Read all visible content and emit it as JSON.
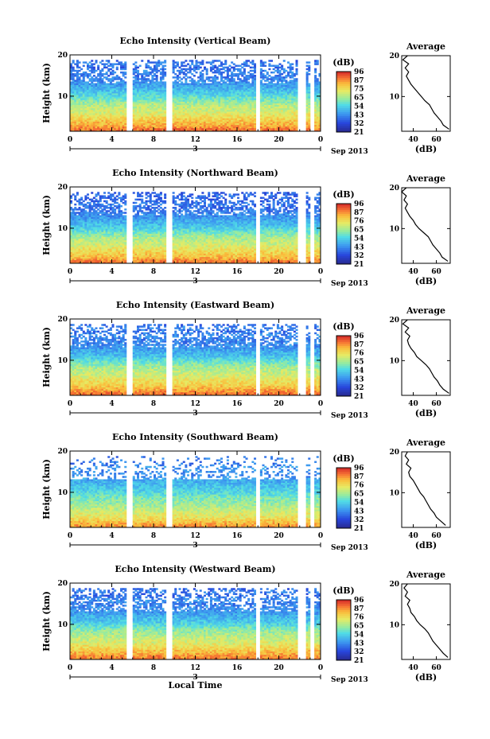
{
  "chart_data": [
    {
      "type": "heatmap",
      "title": "Echo Intensity (Vertical Beam)",
      "ylabel": "Height (km)",
      "xticks": [
        "0",
        "4",
        "8",
        "12",
        "16",
        "20",
        "0"
      ],
      "xlim": [
        0,
        24
      ],
      "yticks": [
        "10",
        "20"
      ],
      "ylim": [
        1.5,
        20
      ],
      "date_label": "3",
      "date_suffix": "Sep 2013",
      "colorbar": {
        "unit": "(dB)",
        "ticks": [
          "96",
          "87",
          "75",
          "65",
          "54",
          "43",
          "32",
          "21"
        ]
      },
      "data_gaps": [
        [
          1.8,
          1.9
        ],
        [
          5.4,
          6.0
        ],
        [
          9.3,
          9.8
        ],
        [
          17.8,
          18.1
        ],
        [
          21.8,
          22.5
        ],
        [
          23.0,
          23.3
        ]
      ],
      "profile": {
        "title": "Average",
        "xlabel": "(dB)",
        "xticks": [
          "40",
          "60"
        ],
        "xlim": [
          30,
          72
        ],
        "yticks": [
          "10",
          "20"
        ],
        "ylim": [
          1.5,
          20
        ],
        "heights": [
          2,
          3,
          4,
          5,
          6,
          7,
          8,
          9,
          10,
          11,
          12,
          13,
          14,
          15,
          16,
          17,
          18,
          19,
          20
        ],
        "values": [
          71,
          66,
          64,
          61,
          58,
          56,
          54,
          50,
          47,
          44,
          41,
          38,
          36,
          34,
          36,
          33,
          36,
          31,
          35
        ]
      }
    },
    {
      "type": "heatmap",
      "title": "Echo Intensity (Northward Beam)",
      "ylabel": "Height (km)",
      "xticks": [
        "0",
        "4",
        "8",
        "12",
        "16",
        "20",
        "0"
      ],
      "xlim": [
        0,
        24
      ],
      "yticks": [
        "10",
        "20"
      ],
      "ylim": [
        1.5,
        20
      ],
      "date_label": "3",
      "date_suffix": "Sep 2013",
      "colorbar": {
        "unit": "(dB)",
        "ticks": [
          "96",
          "87",
          "76",
          "65",
          "54",
          "43",
          "32",
          "21"
        ]
      },
      "data_gaps": [
        [
          1.8,
          1.9
        ],
        [
          5.4,
          6.0
        ],
        [
          9.3,
          9.8
        ],
        [
          17.8,
          18.1
        ],
        [
          21.8,
          22.5
        ],
        [
          23.0,
          23.3
        ]
      ],
      "profile": {
        "title": "Average",
        "xlabel": "(dB)",
        "xticks": [
          "40",
          "60"
        ],
        "xlim": [
          30,
          72
        ],
        "yticks": [
          "10",
          "20"
        ],
        "ylim": [
          1.5,
          20
        ],
        "heights": [
          2,
          3,
          4,
          5,
          6,
          7,
          8,
          9,
          10,
          11,
          12,
          13,
          14,
          15,
          16,
          17,
          18,
          19,
          20
        ],
        "values": [
          70,
          65,
          63,
          60,
          57,
          55,
          53,
          49,
          45,
          42,
          40,
          37,
          35,
          33,
          35,
          32,
          34,
          30,
          34
        ]
      }
    },
    {
      "type": "heatmap",
      "title": "Echo Intensity (Eastward Beam)",
      "ylabel": "Height (km)",
      "xticks": [
        "0",
        "4",
        "8",
        "12",
        "16",
        "20",
        "0"
      ],
      "xlim": [
        0,
        24
      ],
      "yticks": [
        "10",
        "20"
      ],
      "ylim": [
        1.5,
        20
      ],
      "date_label": "3",
      "date_suffix": "Sep 2013",
      "colorbar": {
        "unit": "(dB)",
        "ticks": [
          "96",
          "87",
          "76",
          "65",
          "54",
          "43",
          "32",
          "21"
        ]
      },
      "data_gaps": [
        [
          1.8,
          1.9
        ],
        [
          5.4,
          6.0
        ],
        [
          9.3,
          9.8
        ],
        [
          17.8,
          18.1
        ],
        [
          21.8,
          22.5
        ],
        [
          23.0,
          23.3
        ]
      ],
      "profile": {
        "title": "Average",
        "xlabel": "(dB)",
        "xticks": [
          "40",
          "60"
        ],
        "xlim": [
          30,
          72
        ],
        "yticks": [
          "10",
          "20"
        ],
        "ylim": [
          1.5,
          20
        ],
        "heights": [
          2,
          3,
          4,
          5,
          6,
          7,
          8,
          9,
          10,
          11,
          12,
          13,
          14,
          15,
          16,
          17,
          18,
          19,
          20
        ],
        "values": [
          71,
          66,
          63,
          61,
          58,
          56,
          54,
          51,
          47,
          43,
          41,
          38,
          36,
          35,
          37,
          33,
          36,
          31,
          35
        ]
      }
    },
    {
      "type": "heatmap",
      "title": "Echo Intensity (Southward Beam)",
      "ylabel": "Height (km)",
      "xticks": [
        "0",
        "4",
        "8",
        "12",
        "16",
        "20",
        "0"
      ],
      "xlim": [
        0,
        24
      ],
      "yticks": [
        "10",
        "20"
      ],
      "ylim": [
        1.5,
        20
      ],
      "date_label": "3",
      "date_suffix": "Sep 2013",
      "colorbar": {
        "unit": "(dB)",
        "ticks": [
          "96",
          "87",
          "76",
          "65",
          "54",
          "43",
          "32",
          "21"
        ]
      },
      "data_gaps": [
        [
          1.8,
          1.9
        ],
        [
          5.4,
          6.0
        ],
        [
          9.3,
          9.8
        ],
        [
          17.8,
          18.1
        ],
        [
          21.8,
          22.5
        ],
        [
          23.0,
          23.3
        ]
      ],
      "profile": {
        "title": "Average",
        "xlabel": "(dB)",
        "xticks": [
          "40",
          "60"
        ],
        "xlim": [
          30,
          72
        ],
        "yticks": [
          "10",
          "20"
        ],
        "ylim": [
          1.5,
          20
        ],
        "heights": [
          2,
          3,
          4,
          5,
          6,
          7,
          8,
          9,
          10,
          11,
          12,
          13,
          14,
          15,
          16,
          17,
          18,
          19,
          20
        ],
        "values": [
          68,
          64,
          60,
          58,
          55,
          53,
          51,
          49,
          46,
          44,
          42,
          40,
          37,
          36,
          38,
          34,
          36,
          33,
          35
        ]
      }
    },
    {
      "type": "heatmap",
      "title": "Echo Intensity (Westward Beam)",
      "ylabel": "Height (km)",
      "xticks": [
        "0",
        "4",
        "8",
        "12",
        "16",
        "20",
        "0"
      ],
      "xlim": [
        0,
        24
      ],
      "yticks": [
        "10",
        "20"
      ],
      "ylim": [
        1.5,
        20
      ],
      "date_label": "3",
      "date_suffix": "Sep 2013",
      "xlabel": "Local Time",
      "colorbar": {
        "unit": "(dB)",
        "ticks": [
          "96",
          "87",
          "76",
          "65",
          "54",
          "43",
          "32",
          "21"
        ]
      },
      "data_gaps": [
        [
          1.8,
          1.9
        ],
        [
          5.4,
          6.0
        ],
        [
          9.3,
          9.8
        ],
        [
          17.8,
          18.1
        ],
        [
          21.8,
          22.5
        ],
        [
          23.0,
          23.3
        ]
      ],
      "profile": {
        "title": "Average",
        "xlabel": "(dB)",
        "xticks": [
          "40",
          "60"
        ],
        "xlim": [
          30,
          72
        ],
        "yticks": [
          "10",
          "20"
        ],
        "ylim": [
          1.5,
          20
        ],
        "heights": [
          2,
          3,
          4,
          5,
          6,
          7,
          8,
          9,
          10,
          11,
          12,
          13,
          14,
          15,
          16,
          17,
          18,
          19,
          20
        ],
        "values": [
          70,
          66,
          63,
          60,
          57,
          55,
          53,
          50,
          46,
          43,
          41,
          38,
          37,
          35,
          37,
          33,
          35,
          32,
          35
        ]
      }
    }
  ]
}
